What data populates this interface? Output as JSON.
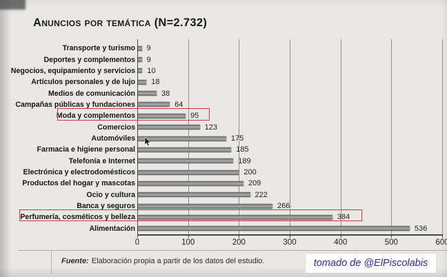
{
  "title": "Anuncios por temática (N=2.732)",
  "chart_data": {
    "type": "bar",
    "orientation": "horizontal",
    "title": "Anuncios por temática (N=2.732)",
    "categories": [
      "Transporte y turismo",
      "Deportes y complementos",
      "Negocios, equipamiento y servicios",
      "Artículos personales y de lujo",
      "Medios de comunicación",
      "Campañas públicas y fundaciones",
      "Moda y complementos",
      "Comercios",
      "Automóviles",
      "Farmacia e higiene personal",
      "Telefonía e Internet",
      "Electrónica y electrodomésticos",
      "Productos del hogar y mascotas",
      "Ocio y cultura",
      "Banca y seguros",
      "Perfumería, cosméticos y belleza",
      "Alimentación"
    ],
    "values": [
      9,
      9,
      10,
      18,
      38,
      64,
      95,
      123,
      175,
      185,
      189,
      200,
      209,
      222,
      266,
      384,
      536
    ],
    "total_n": 2732,
    "xlim": [
      0,
      600
    ],
    "x_ticks": [
      0,
      100,
      200,
      300,
      400,
      500,
      600
    ],
    "grid": true,
    "data_labels": true,
    "highlighted_categories": [
      "Moda y complementos",
      "Perfumería, cosméticos y belleza"
    ],
    "bar_color": "#8c8c8c",
    "highlight_box_color": "#c63b3b"
  },
  "footer": {
    "source_label": "Fuente:",
    "source_text": "Elaboración propia a partir de los datos del estudio."
  },
  "watermark": {
    "text": "tomado de @ElPiscolabis",
    "color": "#2a2ab2"
  }
}
